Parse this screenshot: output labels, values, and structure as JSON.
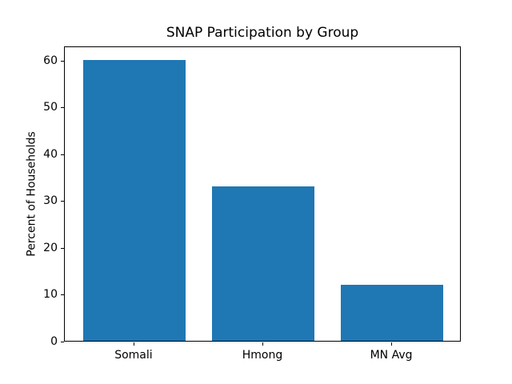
{
  "chart_data": {
    "type": "bar",
    "title": "SNAP Participation by Group",
    "categories": [
      "Somali",
      "Hmong",
      "MN Avg"
    ],
    "values": [
      60,
      33,
      12
    ],
    "xlabel": "",
    "ylabel": "Percent of Households",
    "ylim": [
      0,
      63
    ],
    "yticks": [
      0,
      10,
      20,
      30,
      40,
      50,
      60
    ],
    "bar_color": "#1f77b4",
    "axis_color": "#000000",
    "text_color": "#000000",
    "background_color": "#ffffff",
    "grid": false,
    "legend": null
  }
}
